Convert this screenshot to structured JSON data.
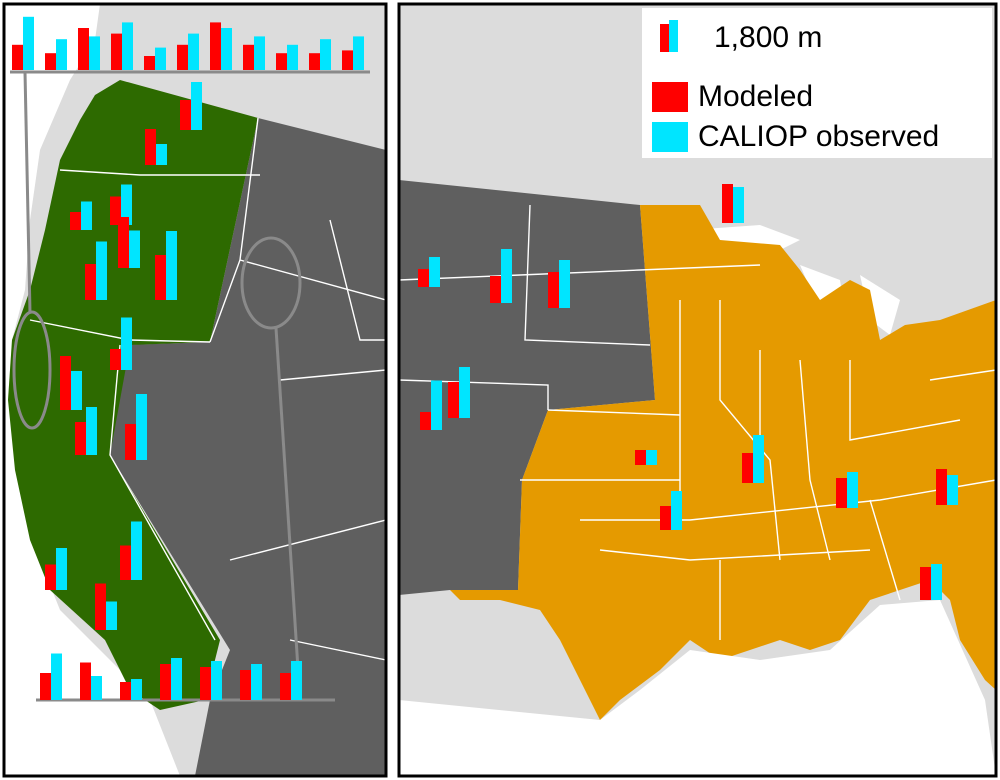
{
  "legend": {
    "scale_label": "1,800 m",
    "modeled_label": "Modeled",
    "observed_label": "CALIOP observed"
  },
  "colors": {
    "modeled": "#ff0000",
    "observed": "#00e5ff",
    "west_region": "#2d6a00",
    "east_region": "#e59a00",
    "other_states": "#5f5f5f",
    "background": "#dcdcdc",
    "water": "#ffffff"
  },
  "stations": {
    "left_panel": [
      {
        "m": 0.6,
        "o": 0.95
      },
      {
        "m": 0.95,
        "o": 1.35
      },
      {
        "m": 1.2,
        "o": 0.7
      },
      {
        "m": 1.0,
        "o": 1.6
      },
      {
        "m": 1.7,
        "o": 1.25
      },
      {
        "m": 1.5,
        "o": 2.3
      },
      {
        "m": 1.2,
        "o": 1.95
      },
      {
        "m": 0.7,
        "o": 1.75
      },
      {
        "m": 1.8,
        "o": 1.3
      },
      {
        "m": 1.1,
        "o": 1.6
      },
      {
        "m": 1.2,
        "o": 2.2
      },
      {
        "m": 1.15,
        "o": 1.95
      },
      {
        "m": 0.85,
        "o": 1.4
      },
      {
        "m": 1.55,
        "o": 0.95
      },
      {
        "m": 0.9,
        "o": 1.55
      },
      {
        "m": 1.25,
        "o": 0.8
      },
      {
        "m": 0.6,
        "o": 0.7
      },
      {
        "m": 1.2,
        "o": 1.4
      },
      {
        "m": 1.1,
        "o": 1.3
      },
      {
        "m": 1.0,
        "o": 1.2
      },
      {
        "m": 0.9,
        "o": 1.3
      }
    ],
    "right_panel": [
      {
        "m": 0.6,
        "o": 1.0
      },
      {
        "m": 0.9,
        "o": 1.8
      },
      {
        "m": 1.2,
        "o": 1.7
      },
      {
        "m": 0.6,
        "o": 1.65
      },
      {
        "m": 1.2,
        "o": 1.6
      },
      {
        "m": 1.3,
        "o": 1.2
      },
      {
        "m": 0.5,
        "o": 0.5
      },
      {
        "m": 1.0,
        "o": 1.6
      },
      {
        "m": 1.0,
        "o": 1.2
      },
      {
        "m": 1.2,
        "o": 1.0
      },
      {
        "m": 0.8,
        "o": 1.3
      },
      {
        "m": 1.1,
        "o": 1.2
      }
    ]
  }
}
